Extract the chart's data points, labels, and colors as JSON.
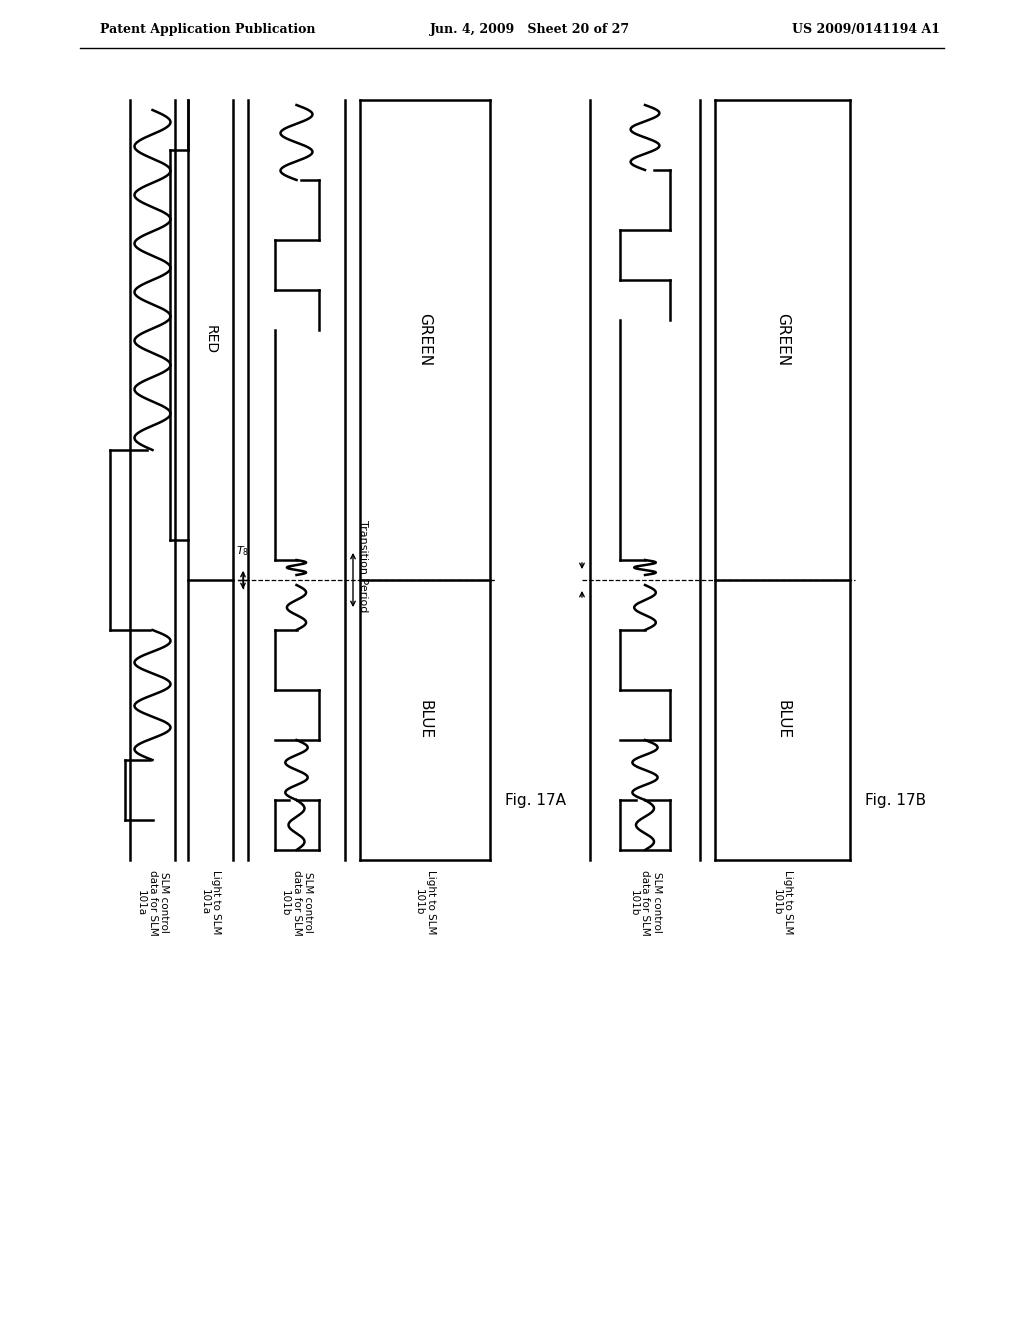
{
  "header_left": "Patent Application Publication",
  "header_mid": "Jun. 4, 2009   Sheet 20 of 27",
  "header_right": "US 2009/0141194 A1",
  "fig17a_label": "Fig. 17A",
  "fig17b_label": "Fig. 17B",
  "transition_period_label": "Transition Period",
  "red_label": "RED",
  "blue_label": "BLUE",
  "green_label": "GREEN",
  "t8_label": "T8",
  "label_col0": "SLM control\ndata for SLM\n101a",
  "label_col1": "Light to SLM\n101a",
  "label_col2": "SLM control\ndata for SLM\n101b",
  "label_col3": "Light to SLM\n101b",
  "label_col4": "SLM control\ndata for SLM\n101b",
  "label_col5": "Light to SLM\n101b",
  "bg_color": "#ffffff",
  "line_color": "#000000"
}
